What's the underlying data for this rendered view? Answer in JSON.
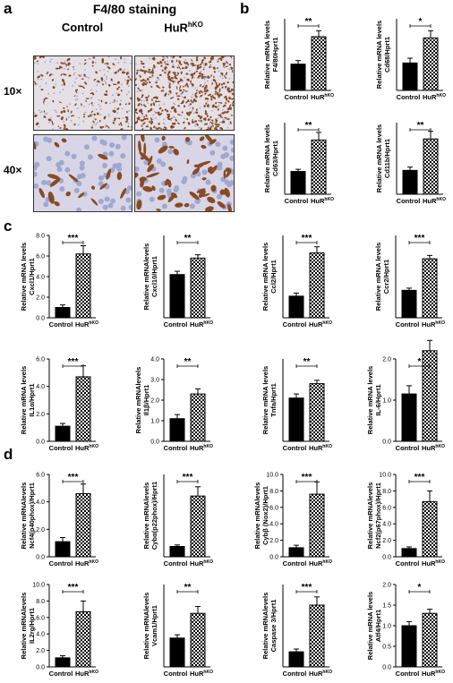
{
  "panel_a": {
    "letter": "a",
    "title": "F4/80 staining",
    "col_control": "Control",
    "col_hur_base": "HuR",
    "col_hur_sup": "hKO",
    "row_10x": "10×",
    "row_40x": "40×"
  },
  "panel_letters": {
    "b": "b",
    "c": "c",
    "d": "d"
  },
  "colors": {
    "control_bar": "#000000",
    "hur_bar_pattern": "checkered",
    "axis": "#000000"
  },
  "chart_data": [
    {
      "id": "F4/80",
      "type": "bar",
      "panel": "b",
      "categories": [
        "Control",
        "HuRhKO"
      ],
      "values": [
        1.1,
        2.25
      ],
      "errors": [
        0.15,
        0.25
      ],
      "ylabel": [
        "Relative mRNA levels",
        "F4/80Hprt1"
      ],
      "ylim": [
        0,
        3
      ],
      "yticks": [],
      "sig": "**"
    },
    {
      "id": "Cd68",
      "type": "bar",
      "panel": "b",
      "categories": [
        "Control",
        "HuRhKO"
      ],
      "values": [
        1.15,
        2.2
      ],
      "errors": [
        0.2,
        0.3
      ],
      "ylabel": [
        "Relative mRNA levels",
        "Cd68/Hprt1"
      ],
      "ylim": [
        0,
        3
      ],
      "yticks": [],
      "sig": "*"
    },
    {
      "id": "Cd63",
      "type": "bar",
      "panel": "b",
      "categories": [
        "Control",
        "HuRhKO"
      ],
      "values": [
        1.05,
        2.5
      ],
      "errors": [
        0.1,
        0.35
      ],
      "ylabel": [
        "Relative mRNA levels",
        "Cd63/Hprt1"
      ],
      "ylim": [
        0,
        3.3
      ],
      "yticks": [],
      "sig": "**"
    },
    {
      "id": "Cd11b",
      "type": "bar",
      "panel": "b",
      "categories": [
        "Control",
        "HuRhKO"
      ],
      "values": [
        1.1,
        2.55
      ],
      "errors": [
        0.15,
        0.35
      ],
      "ylabel": [
        "Relative mRNA levels",
        "Cd11b/Hprt1"
      ],
      "ylim": [
        0,
        3.3
      ],
      "yticks": [],
      "sig": "**"
    },
    {
      "id": "Cxcl1",
      "type": "bar",
      "panel": "c",
      "categories": [
        "Control",
        "HuRhKO"
      ],
      "values": [
        1.0,
        6.2
      ],
      "errors": [
        0.25,
        0.8
      ],
      "ylabel": [
        "Relative mRNA levels",
        "Cxcl1/Hprt1"
      ],
      "ylim": [
        0,
        8
      ],
      "yticks": [
        "0.0",
        "2.0",
        "4.0",
        "6.0",
        "8.0"
      ],
      "sig": "***"
    },
    {
      "id": "Cxcl10",
      "type": "bar",
      "panel": "c",
      "categories": [
        "Control",
        "HuRhKO"
      ],
      "values": [
        1.05,
        1.45
      ],
      "errors": [
        0.08,
        0.08
      ],
      "ylabel": [
        "Relative mRNAlevels",
        "Cxcl10/Hprt1"
      ],
      "ylim": [
        0,
        2
      ],
      "yticks": [],
      "sig": "**"
    },
    {
      "id": "Ccl2",
      "type": "bar",
      "panel": "c",
      "categories": [
        "Control",
        "HuRhKO"
      ],
      "values": [
        1.05,
        3.15
      ],
      "errors": [
        0.15,
        0.3
      ],
      "ylabel": [
        "Relative mRNA levels",
        "Ccl2/Hprt1"
      ],
      "ylim": [
        0,
        4
      ],
      "yticks": [],
      "sig": "***"
    },
    {
      "id": "Ccr2",
      "type": "bar",
      "panel": "c",
      "categories": [
        "Control",
        "HuRhKO"
      ],
      "values": [
        1.0,
        2.15
      ],
      "errors": [
        0.08,
        0.12
      ],
      "ylabel": [
        "Relative mRNA levels",
        "Ccr2/Hprt1"
      ],
      "ylim": [
        0,
        3
      ],
      "yticks": [],
      "sig": "***"
    },
    {
      "id": "IL1a",
      "type": "bar",
      "panel": "c",
      "categories": [
        "Control",
        "HuRhKO"
      ],
      "values": [
        1.1,
        4.7
      ],
      "errors": [
        0.2,
        0.8
      ],
      "ylabel": [
        "Relative mRNA levels",
        "IL1α/Hprt1"
      ],
      "ylim": [
        0,
        6
      ],
      "yticks": [
        "0.0",
        "2.0",
        "4.0",
        "6.0"
      ],
      "sig": "***"
    },
    {
      "id": "Il1b",
      "type": "bar",
      "panel": "c",
      "categories": [
        "Control",
        "HuRhKO"
      ],
      "values": [
        1.1,
        2.3
      ],
      "errors": [
        0.2,
        0.25
      ],
      "ylabel": [
        "Relative mRNAlevels",
        "Il1β/Hprt1"
      ],
      "ylim": [
        0,
        4
      ],
      "yticks": [
        "0.0",
        "1.0",
        "2.0",
        "3.0",
        "4.0"
      ],
      "sig": "**"
    },
    {
      "id": "Tnfa",
      "type": "bar",
      "panel": "c",
      "categories": [
        "Control",
        "HuRhKO"
      ],
      "values": [
        1.05,
        1.4
      ],
      "errors": [
        0.1,
        0.08
      ],
      "ylabel": [
        "Relative mRNA levels",
        "Tnfa/Hprt1"
      ],
      "ylim": [
        0,
        2
      ],
      "yticks": [],
      "sig": "**"
    },
    {
      "id": "Il6",
      "type": "bar",
      "panel": "c",
      "categories": [
        "Control",
        "HuRhKO"
      ],
      "values": [
        1.15,
        2.2
      ],
      "errors": [
        0.2,
        0.25
      ],
      "ylabel": [
        "Relative mRNA levels",
        "IL-6/Hprt1"
      ],
      "ylim": [
        0,
        2
      ],
      "yticks": [
        "0.0",
        "1.0",
        "2.0"
      ],
      "sig": "*"
    },
    {
      "id": "Ncf4",
      "type": "bar",
      "panel": "d",
      "categories": [
        "Control",
        "HuRhKO"
      ],
      "values": [
        1.1,
        4.6
      ],
      "errors": [
        0.3,
        0.7
      ],
      "ylabel": [
        "Relative mRNAlevels",
        "Ncf4(p40phox)/Hprt1"
      ],
      "ylim": [
        0,
        6
      ],
      "yticks": [
        "0.0",
        "2.0",
        "4.0",
        "6.0"
      ],
      "sig": "***"
    },
    {
      "id": "Cyba",
      "type": "bar",
      "panel": "d",
      "categories": [
        "Control",
        "HuRhKO"
      ],
      "values": [
        1.0,
        5.9
      ],
      "errors": [
        0.15,
        0.9
      ],
      "ylabel": [
        "Relative mRNAlevels",
        "Cybα(p22phox)/Hprt1"
      ],
      "ylim": [
        0,
        8
      ],
      "yticks": [],
      "sig": "***"
    },
    {
      "id": "Cybb",
      "type": "bar",
      "panel": "d",
      "categories": [
        "Control",
        "HuRhKO"
      ],
      "values": [
        1.1,
        7.6
      ],
      "errors": [
        0.3,
        1.5
      ],
      "ylabel": [
        "Relative mRNAlevels",
        "Cybβ (Nox2)/Hprt1"
      ],
      "ylim": [
        0,
        10
      ],
      "yticks": [
        "0.0",
        "2.0",
        "4.0",
        "6.0",
        "8.0",
        "10.0"
      ],
      "sig": "***"
    },
    {
      "id": "Ncf2",
      "type": "bar",
      "panel": "d",
      "categories": [
        "Control",
        "HuRhKO"
      ],
      "values": [
        1.0,
        6.7
      ],
      "errors": [
        0.2,
        1.3
      ],
      "ylabel": [
        "Relative mRNAlevels",
        "Ncf2(p67phox)/Hprt1"
      ],
      "ylim": [
        0,
        10
      ],
      "yticks": [
        "0.0",
        "2.0",
        "4.0",
        "6.0",
        "8.0",
        "10.0"
      ],
      "sig": "***"
    },
    {
      "id": "IL2rg",
      "type": "bar",
      "panel": "d",
      "categories": [
        "Control",
        "HuRhKO"
      ],
      "values": [
        1.1,
        6.7
      ],
      "errors": [
        0.25,
        1.3
      ],
      "ylabel": [
        "Relative mRNAlevels",
        "IL2rg/Hprt1"
      ],
      "ylim": [
        0,
        10
      ],
      "yticks": [
        "0.0",
        "2.0",
        "4.0",
        "6.0",
        "8.0",
        "10.0"
      ],
      "sig": "***"
    },
    {
      "id": "Vcam1",
      "type": "bar",
      "panel": "d",
      "categories": [
        "Control",
        "HuRhKO"
      ],
      "values": [
        1.05,
        1.95
      ],
      "errors": [
        0.12,
        0.25
      ],
      "ylabel": [
        "Relative mRNAlevels",
        "Vcam1/Hprt1"
      ],
      "ylim": [
        0,
        3
      ],
      "yticks": [],
      "sig": "**"
    },
    {
      "id": "Caspase3",
      "type": "bar",
      "panel": "d",
      "categories": [
        "Control",
        "HuRhKO"
      ],
      "values": [
        1.1,
        4.5
      ],
      "errors": [
        0.2,
        0.6
      ],
      "ylabel": [
        "Relative mRNAlevels",
        "Caspase 3/Hprt1"
      ],
      "ylim": [
        0,
        6
      ],
      "yticks": [],
      "sig": "***"
    },
    {
      "id": "Atf4",
      "type": "bar",
      "panel": "d",
      "categories": [
        "Control",
        "HuRhKO"
      ],
      "values": [
        1.0,
        1.3
      ],
      "errors": [
        0.1,
        0.1
      ],
      "ylabel": [
        "Relative mRNA levels",
        "Atf4/Hprt1"
      ],
      "ylim": [
        0,
        2
      ],
      "yticks": [
        "0.0",
        "0.5",
        "1.0",
        "1.5",
        "2.0"
      ],
      "sig": "*"
    }
  ],
  "x_labels": {
    "control": "Control",
    "hur_base": "HuR",
    "hur_sup": "hKO"
  }
}
